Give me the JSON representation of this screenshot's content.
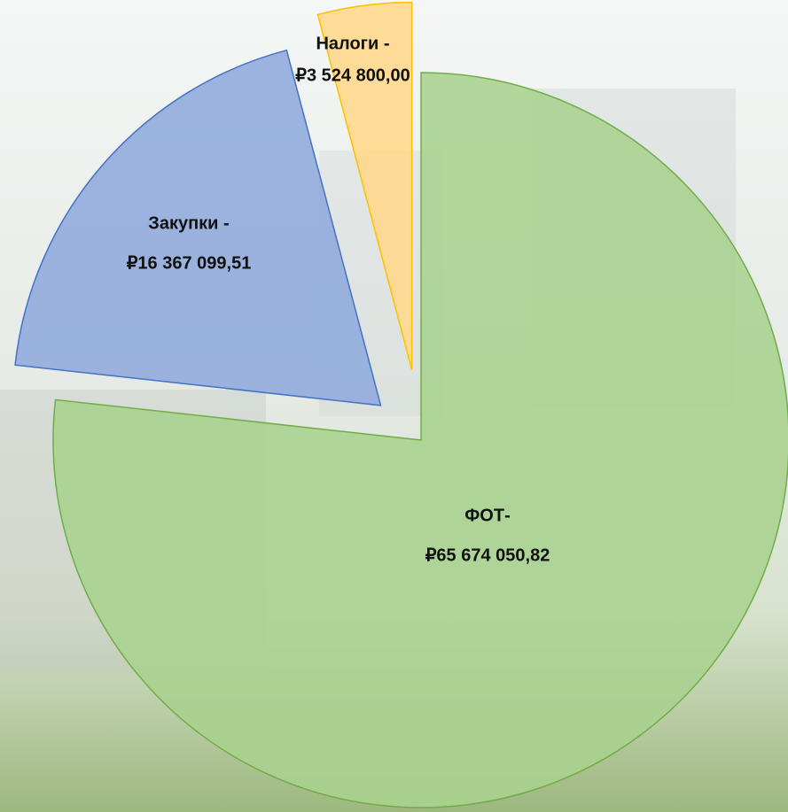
{
  "chart_data": {
    "type": "pie",
    "categories": [
      "ФОТ-",
      "Закупки -",
      "Налоги -"
    ],
    "values": [
      65674050.82,
      16367099.51,
      3524800.0
    ],
    "value_labels": [
      "₽65 674 050,82",
      "₽16 367 099,51",
      "₽3 524 800,00"
    ],
    "colors": [
      "#a9d18e",
      "#8faadc",
      "#ffd88a"
    ]
  }
}
